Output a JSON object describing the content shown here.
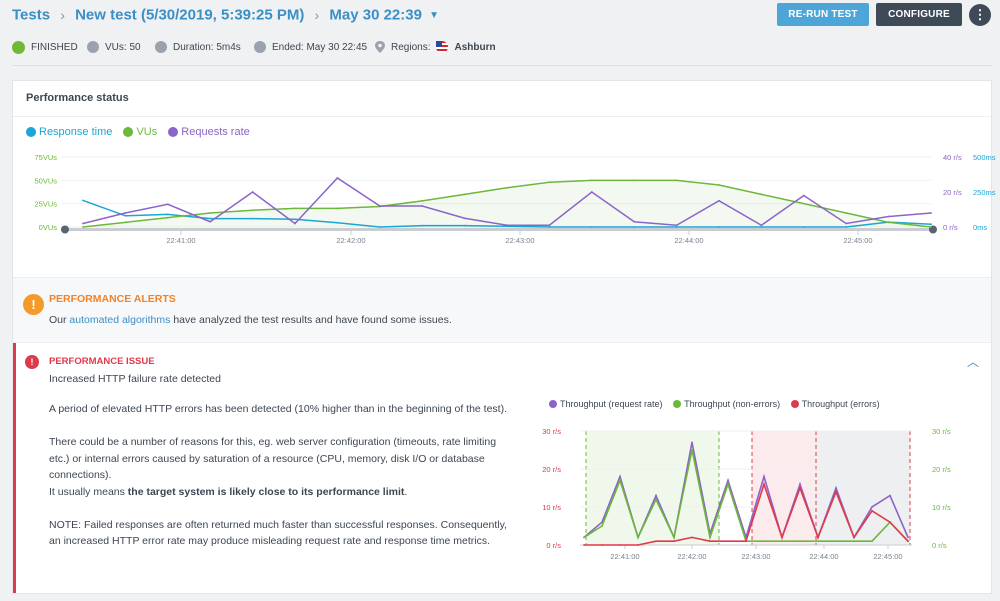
{
  "header": {
    "crumb_tests": "Tests",
    "crumb_test": "New test (5/30/2019, 5:39:25 PM)",
    "crumb_run": "May 30 22:39",
    "rerun_label": "RE-RUN TEST",
    "configure_label": "CONFIGURE",
    "more_label": "⋮"
  },
  "status": {
    "state": "FINISHED",
    "vus": "VUs: 50",
    "duration": "Duration: 5m4s",
    "ended": "Ended: May 30 22:45",
    "regions_label": "Regions:",
    "region": "Ashburn"
  },
  "performance": {
    "title": "Performance status",
    "legend": {
      "response_time": "Response time",
      "vus": "VUs",
      "requests_rate": "Requests rate"
    }
  },
  "alerts": {
    "title": "PERFORMANCE ALERTS",
    "text_before": "Our ",
    "link": "automated algorithms",
    "text_after": " have analyzed the test results and have found some issues."
  },
  "issue": {
    "title": "PERFORMANCE ISSUE",
    "subtitle": "Increased HTTP failure rate detected",
    "p1": "A period of elevated HTTP errors has been detected (10% higher than in the beginning of the test).",
    "p2": "There could be a number of reasons for this, eg. web server configuration (timeouts, rate limiting etc.) or internal errors caused by saturation of a resource (CPU, memory, disk I/O or database connections).",
    "p3_before": "It usually means ",
    "p3_bold": "the target system is likely close to its performance limit",
    "p3_after": ".",
    "p4": "NOTE: Failed responses are often returned much faster than successful responses. Consequently, an increased HTTP error rate may produce misleading request rate and response time metrics.",
    "legend": {
      "request_rate": "Throughput (request rate)",
      "non_errors": "Throughput (non-errors)",
      "errors": "Throughput (errors)"
    }
  },
  "colors": {
    "response_time": "#1aa6d4",
    "vus": "#6cb83a",
    "requests_rate": "#8b63c9",
    "errors": "#e0394a"
  },
  "chart_data": [
    {
      "type": "line",
      "x": [
        "22:40:30",
        "22:40:45",
        "22:41:00",
        "22:41:15",
        "22:41:30",
        "22:41:45",
        "22:42:00",
        "22:42:15",
        "22:42:30",
        "22:42:45",
        "22:43:00",
        "22:43:15",
        "22:43:30",
        "22:43:45",
        "22:44:00",
        "22:44:15",
        "22:44:30",
        "22:44:45",
        "22:45:00",
        "22:45:15",
        "22:45:30"
      ],
      "x_ticks": [
        "22:41:00",
        "22:42:00",
        "22:43:00",
        "22:44:00",
        "22:45:00"
      ],
      "y_left_ticks": [
        "0VUs",
        "25VUs",
        "50VUs",
        "75VUs"
      ],
      "y_right1_ticks": [
        "0 r/s",
        "20 r/s",
        "40 r/s"
      ],
      "y_right2_ticks": [
        "0ms",
        "250ms",
        "500ms"
      ],
      "series": [
        {
          "name": "Response time",
          "unit": "ms",
          "values": [
            190,
            80,
            90,
            60,
            60,
            55,
            30,
            0,
            10,
            10,
            5,
            0,
            0,
            0,
            0,
            0,
            0,
            0,
            0,
            35,
            20
          ]
        },
        {
          "name": "VUs",
          "unit": "VUs",
          "values": [
            0,
            5,
            10,
            15,
            18,
            20,
            20,
            22,
            28,
            35,
            42,
            48,
            50,
            50,
            50,
            45,
            35,
            25,
            15,
            5,
            0
          ]
        },
        {
          "name": "Requests rate",
          "unit": "r/s",
          "values": [
            2,
            8,
            13,
            3,
            20,
            2,
            28,
            12,
            12,
            5,
            1,
            1,
            20,
            3,
            1,
            15,
            1,
            18,
            2,
            6,
            8
          ]
        }
      ]
    },
    {
      "type": "line",
      "x": [
        "22:40:45",
        "22:41:00",
        "22:41:15",
        "22:41:30",
        "22:41:45",
        "22:42:00",
        "22:42:15",
        "22:42:30",
        "22:42:45",
        "22:43:00",
        "22:43:15",
        "22:43:30",
        "22:43:45",
        "22:44:00",
        "22:44:15",
        "22:44:30",
        "22:44:45",
        "22:45:00",
        "22:45:15"
      ],
      "x_ticks": [
        "22:41:00",
        "22:42:00",
        "22:43:00",
        "22:44:00",
        "22:45:00"
      ],
      "y_left_ticks": [
        "0 r/s",
        "10 r/s",
        "20 r/s",
        "30 r/s"
      ],
      "y_right_ticks": [
        "0 r/s",
        "10 r/s",
        "20 r/s",
        "30 r/s"
      ],
      "series": [
        {
          "name": "Throughput (request rate)",
          "values": [
            2,
            6,
            18,
            2,
            13,
            2,
            27,
            3,
            17,
            2,
            18,
            2,
            16,
            2,
            15,
            2,
            10,
            13,
            2
          ]
        },
        {
          "name": "Throughput (non-errors)",
          "values": [
            2,
            5,
            17,
            2,
            12,
            2,
            25,
            2,
            16,
            1,
            1,
            1,
            1,
            1,
            1,
            1,
            1,
            6,
            1
          ]
        },
        {
          "name": "Throughput (errors)",
          "values": [
            0,
            0,
            0,
            0,
            1,
            1,
            2,
            1,
            1,
            1,
            16,
            2,
            15,
            2,
            14,
            2,
            9,
            6,
            1
          ]
        }
      ]
    }
  ]
}
